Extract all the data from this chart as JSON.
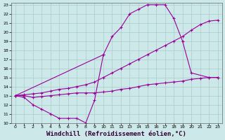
{
  "background_color": "#cce8e8",
  "grid_color": "#aacccc",
  "line_color": "#990099",
  "marker": "+",
  "xlabel": "Windchill (Refroidissement éolien,°C)",
  "xlim": [
    0,
    23
  ],
  "ylim": [
    10,
    23
  ],
  "xticks": [
    0,
    1,
    2,
    3,
    4,
    5,
    6,
    7,
    8,
    9,
    10,
    11,
    12,
    13,
    14,
    15,
    16,
    17,
    18,
    19,
    20,
    21,
    22,
    23
  ],
  "yticks": [
    10,
    11,
    12,
    13,
    14,
    15,
    16,
    17,
    18,
    19,
    20,
    21,
    22,
    23
  ],
  "line1_x": [
    0,
    1,
    2,
    3,
    4,
    5,
    6,
    7,
    8,
    9,
    10
  ],
  "line1_y": [
    13,
    12.8,
    12,
    11.5,
    11.0,
    10.5,
    10.5,
    10.5,
    10.0,
    12.5,
    17.5
  ],
  "line2_x": [
    0,
    1,
    2,
    3,
    4,
    5,
    6,
    7,
    8,
    9,
    10,
    11,
    12,
    13,
    14,
    15,
    16,
    17,
    18,
    19,
    20,
    21,
    22,
    23
  ],
  "line2_y": [
    13,
    13.1,
    13.2,
    13.3,
    13.5,
    13.7,
    13.8,
    14.0,
    14.2,
    14.5,
    15.0,
    15.5,
    16.0,
    16.5,
    17.0,
    17.5,
    18.0,
    18.5,
    19.0,
    19.5,
    20.2,
    20.8,
    21.2,
    21.3
  ],
  "line3_x": [
    0,
    10,
    11,
    12,
    13,
    14,
    15,
    16,
    17,
    18,
    19,
    20,
    22,
    23
  ],
  "line3_y": [
    13,
    17.5,
    19.5,
    20.5,
    22.0,
    22.5,
    23.0,
    23.0,
    23.0,
    21.5,
    19.0,
    15.5,
    15.0,
    15.0
  ],
  "line4_x": [
    0,
    1,
    2,
    3,
    4,
    5,
    6,
    7,
    8,
    9,
    10,
    11,
    12,
    13,
    14,
    15,
    16,
    17,
    18,
    19,
    20,
    21,
    22,
    23
  ],
  "line4_y": [
    13,
    13.0,
    12.8,
    12.9,
    13.0,
    13.1,
    13.2,
    13.3,
    13.3,
    13.3,
    13.4,
    13.5,
    13.7,
    13.8,
    14.0,
    14.2,
    14.3,
    14.4,
    14.5,
    14.6,
    14.8,
    14.9,
    15.0,
    15.0
  ]
}
